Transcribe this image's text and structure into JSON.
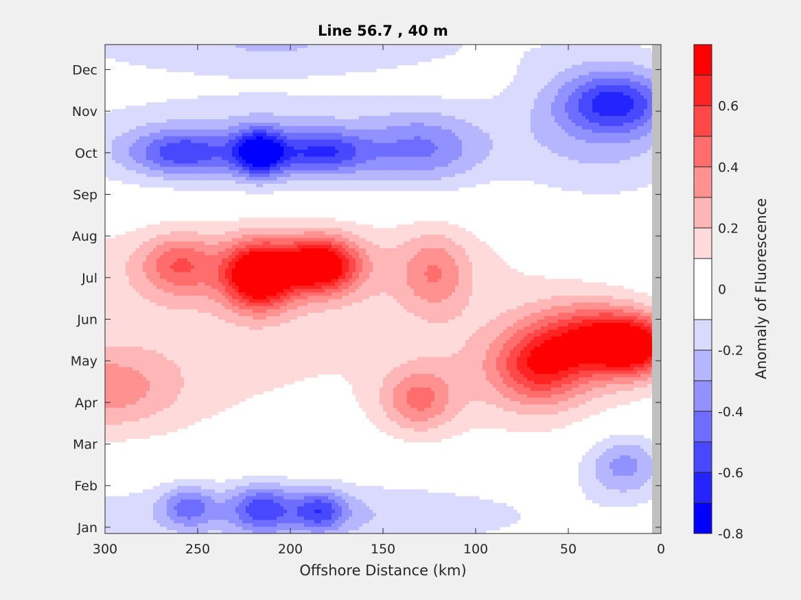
{
  "chart_data": {
    "type": "heatmap",
    "title": "Line 56.7 , 40 m",
    "xlabel": "Offshore Distance (km)",
    "ylabel": "",
    "xlim": [
      300,
      0
    ],
    "x_reversed": true,
    "xticks": [
      300,
      250,
      200,
      150,
      100,
      50,
      0
    ],
    "ylim_month_index": [
      0.85,
      12.6
    ],
    "yticks": [
      {
        "label": "Jan",
        "value": 1
      },
      {
        "label": "Feb",
        "value": 2
      },
      {
        "label": "Mar",
        "value": 3
      },
      {
        "label": "Apr",
        "value": 4
      },
      {
        "label": "May",
        "value": 5
      },
      {
        "label": "Jun",
        "value": 6
      },
      {
        "label": "Jul",
        "value": 7
      },
      {
        "label": "Aug",
        "value": 8
      },
      {
        "label": "Sep",
        "value": 9
      },
      {
        "label": "Oct",
        "value": 10
      },
      {
        "label": "Nov",
        "value": 11
      },
      {
        "label": "Dec",
        "value": 12
      }
    ],
    "colorbar": {
      "label": "Anomaly of Fluorescence",
      "range": [
        -0.8,
        0.8
      ],
      "ticks": [
        -0.8,
        -0.6,
        -0.4,
        -0.2,
        0,
        0.2,
        0.4,
        0.6
      ],
      "tick_labels": [
        "-0.8",
        "-0.6",
        "-0.4",
        "-0.2",
        "0",
        "0.2",
        "0.4",
        "0.6"
      ],
      "levels": [
        -0.8,
        -0.7,
        -0.6,
        -0.5,
        -0.4,
        -0.3,
        -0.2,
        -0.1,
        0.1,
        0.2,
        0.3,
        0.4,
        0.5,
        0.6,
        0.7,
        0.8
      ],
      "colors": [
        "#0000ff",
        "#2424ff",
        "#4848ff",
        "#6d6dff",
        "#9191ff",
        "#b6b6ff",
        "#dadaff",
        "#ffffff",
        "#ffdada",
        "#ffb6b6",
        "#ff9191",
        "#ff6d6d",
        "#ff4848",
        "#ff2424",
        "#ff0000"
      ]
    },
    "contour_line_level": 0,
    "features": [
      {
        "name": "pos-jul-220km",
        "x": 217,
        "y": 7.05,
        "amp": 0.8,
        "sx": 13,
        "sy": 0.55
      },
      {
        "name": "pos-jul-185km",
        "x": 184,
        "y": 7.3,
        "amp": 0.74,
        "sx": 14,
        "sy": 0.45
      },
      {
        "name": "pos-jul-265km",
        "x": 260,
        "y": 7.3,
        "amp": 0.32,
        "sx": 14,
        "sy": 0.5
      },
      {
        "name": "pos-aug-band",
        "x": 205,
        "y": 7.3,
        "amp": 0.2,
        "sx": 90,
        "sy": 0.9
      },
      {
        "name": "pos-jul-125km",
        "x": 122,
        "y": 7.1,
        "amp": 0.26,
        "sx": 13,
        "sy": 0.7
      },
      {
        "name": "pos-may-15km",
        "x": 15,
        "y": 5.35,
        "amp": 0.72,
        "sx": 17,
        "sy": 0.5
      },
      {
        "name": "pos-may-40km",
        "x": 40,
        "y": 5.6,
        "amp": 0.42,
        "sx": 22,
        "sy": 0.6
      },
      {
        "name": "pos-may-65km",
        "x": 65,
        "y": 4.85,
        "amp": 0.44,
        "sx": 17,
        "sy": 0.6
      },
      {
        "name": "pos-apr-band",
        "x": 70,
        "y": 4.8,
        "amp": 0.2,
        "sx": 45,
        "sy": 1.1
      },
      {
        "name": "pos-apr-132km",
        "x": 131,
        "y": 4.05,
        "amp": 0.34,
        "sx": 14,
        "sy": 0.55
      },
      {
        "name": "pos-apr-300km",
        "x": 300,
        "y": 4.3,
        "amp": 0.28,
        "sx": 28,
        "sy": 0.7
      },
      {
        "name": "pos-may-band",
        "x": 250,
        "y": 5.0,
        "amp": 0.12,
        "sx": 90,
        "sy": 1.4
      },
      {
        "name": "neg-oct-216km",
        "x": 217,
        "y": 10.0,
        "amp": -0.62,
        "sx": 10,
        "sy": 0.4
      },
      {
        "name": "neg-oct-180km",
        "x": 183,
        "y": 10.0,
        "amp": -0.42,
        "sx": 18,
        "sy": 0.38
      },
      {
        "name": "neg-oct-260km",
        "x": 258,
        "y": 10.0,
        "amp": -0.4,
        "sx": 20,
        "sy": 0.38
      },
      {
        "name": "neg-oct-band",
        "x": 215,
        "y": 10.2,
        "amp": -0.22,
        "sx": 90,
        "sy": 0.9
      },
      {
        "name": "neg-oct-128km",
        "x": 128,
        "y": 10.1,
        "amp": -0.28,
        "sx": 22,
        "sy": 0.6
      },
      {
        "name": "neg-nov-25km",
        "x": 25,
        "y": 11.2,
        "amp": -0.44,
        "sx": 20,
        "sy": 0.5
      },
      {
        "name": "neg-nov-band",
        "x": 30,
        "y": 10.8,
        "amp": -0.24,
        "sx": 35,
        "sy": 1.3
      },
      {
        "name": "neg-dec-band",
        "x": 210,
        "y": 12.6,
        "amp": -0.2,
        "sx": 80,
        "sy": 0.5
      },
      {
        "name": "neg-feb-band",
        "x": 200,
        "y": 1.3,
        "amp": -0.22,
        "sx": 100,
        "sy": 0.6
      },
      {
        "name": "neg-feb-215km",
        "x": 215,
        "y": 1.45,
        "amp": -0.38,
        "sx": 12,
        "sy": 0.4
      },
      {
        "name": "neg-feb-185km",
        "x": 184,
        "y": 1.4,
        "amp": -0.38,
        "sx": 10,
        "sy": 0.35
      },
      {
        "name": "neg-feb-255km",
        "x": 255,
        "y": 1.5,
        "amp": -0.3,
        "sx": 10,
        "sy": 0.35
      },
      {
        "name": "neg-feb-20km",
        "x": 20,
        "y": 2.5,
        "amp": -0.34,
        "sx": 16,
        "sy": 0.55
      }
    ]
  }
}
